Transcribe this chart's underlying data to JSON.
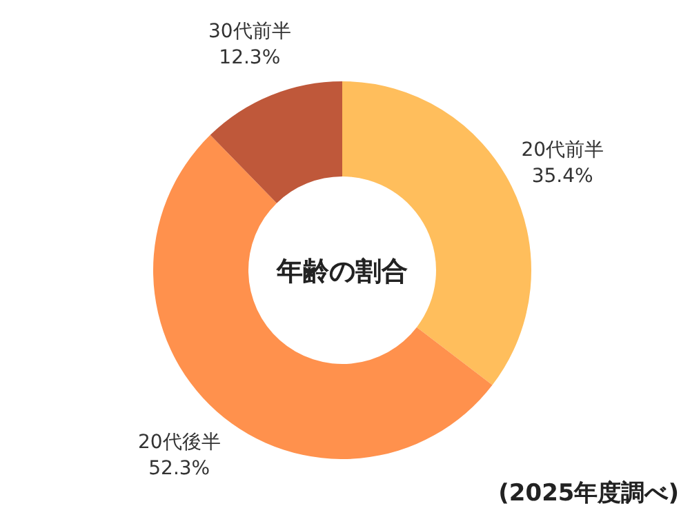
{
  "chart_data": {
    "type": "donut",
    "title": "年齢の割合",
    "categories": [
      "20代前半",
      "20代後半",
      "30代前半"
    ],
    "values": [
      35.4,
      52.3,
      12.3
    ],
    "colors": [
      "#ffbe5c",
      "#ff914d",
      "#bf583a"
    ],
    "value_labels": [
      "35.4%",
      "52.3%",
      "12.3%"
    ],
    "annotations": [
      "(2025年度調べ)"
    ]
  }
}
